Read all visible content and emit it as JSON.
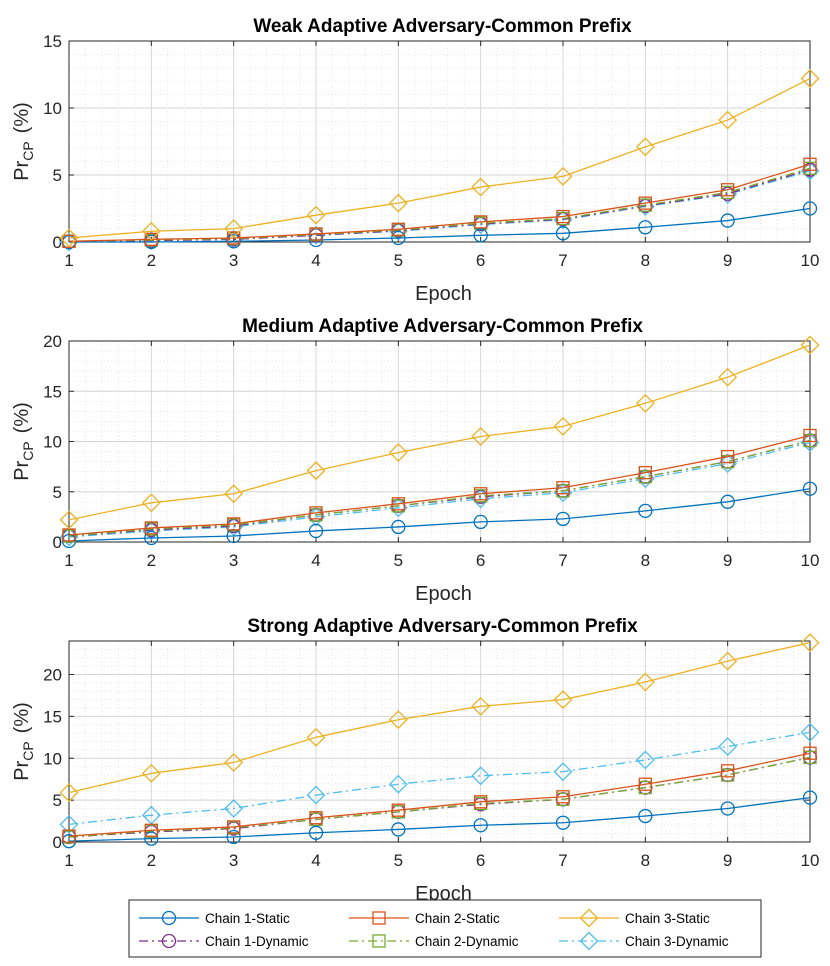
{
  "chart_data": [
    {
      "type": "line",
      "title": "Weak Adaptive Adversary-Common Prefix",
      "xlabel": "Epoch",
      "ylabel_main": "Pr",
      "ylabel_sub": "CP",
      "ylabel_unit": "(%)",
      "x": [
        1,
        2,
        3,
        4,
        5,
        6,
        7,
        8,
        9,
        10
      ],
      "xlim": [
        1,
        10
      ],
      "ylim": [
        0,
        15
      ],
      "yticks": [
        0,
        5,
        10,
        15
      ],
      "grid": true,
      "series": [
        {
          "name": "Chain 1-Static",
          "values": [
            0.0,
            0.0,
            0.05,
            0.15,
            0.3,
            0.5,
            0.65,
            1.1,
            1.6,
            2.5
          ]
        },
        {
          "name": "Chain 2-Static",
          "values": [
            0.05,
            0.2,
            0.3,
            0.6,
            0.95,
            1.5,
            1.9,
            2.9,
            3.9,
            5.8
          ]
        },
        {
          "name": "Chain 3-Static",
          "values": [
            0.3,
            0.8,
            1.0,
            2.0,
            2.9,
            4.1,
            4.9,
            7.1,
            9.1,
            12.2
          ]
        },
        {
          "name": "Chain 1-Dynamic",
          "values": [
            0.0,
            0.1,
            0.2,
            0.5,
            0.85,
            1.35,
            1.7,
            2.7,
            3.6,
            5.4
          ]
        },
        {
          "name": "Chain 2-Dynamic",
          "values": [
            0.05,
            0.15,
            0.25,
            0.55,
            0.9,
            1.4,
            1.75,
            2.75,
            3.7,
            5.5
          ]
        },
        {
          "name": "Chain 3-Dynamic",
          "values": [
            0.0,
            0.1,
            0.2,
            0.5,
            0.8,
            1.3,
            1.65,
            2.65,
            3.55,
            5.3
          ]
        }
      ]
    },
    {
      "type": "line",
      "title": "Medium Adaptive Adversary-Common Prefix",
      "xlabel": "Epoch",
      "ylabel_main": "Pr",
      "ylabel_sub": "CP",
      "ylabel_unit": "(%)",
      "x": [
        1,
        2,
        3,
        4,
        5,
        6,
        7,
        8,
        9,
        10
      ],
      "xlim": [
        1,
        10
      ],
      "ylim": [
        0,
        20
      ],
      "yticks": [
        0,
        5,
        10,
        15,
        20
      ],
      "grid": true,
      "series": [
        {
          "name": "Chain 1-Static",
          "values": [
            0.1,
            0.4,
            0.6,
            1.1,
            1.5,
            2.0,
            2.3,
            3.1,
            4.0,
            5.3
          ]
        },
        {
          "name": "Chain 2-Static",
          "values": [
            0.7,
            1.4,
            1.8,
            2.9,
            3.8,
            4.8,
            5.4,
            6.9,
            8.5,
            10.6
          ]
        },
        {
          "name": "Chain 3-Static",
          "values": [
            2.2,
            3.9,
            4.8,
            7.1,
            8.9,
            10.5,
            11.5,
            13.8,
            16.4,
            19.6
          ]
        },
        {
          "name": "Chain 1-Dynamic",
          "values": [
            0.6,
            1.2,
            1.6,
            2.7,
            3.6,
            4.5,
            5.1,
            6.5,
            8.0,
            10.1
          ]
        },
        {
          "name": "Chain 2-Dynamic",
          "values": [
            0.6,
            1.3,
            1.7,
            2.7,
            3.6,
            4.6,
            5.1,
            6.5,
            8.0,
            10.1
          ]
        },
        {
          "name": "Chain 3-Dynamic",
          "values": [
            0.5,
            1.1,
            1.5,
            2.5,
            3.4,
            4.3,
            4.9,
            6.3,
            7.8,
            9.9
          ]
        }
      ]
    },
    {
      "type": "line",
      "title": "Strong Adaptive Adversary-Common Prefix",
      "xlabel": "Epoch",
      "ylabel_main": "Pr",
      "ylabel_sub": "CP",
      "ylabel_unit": "(%)",
      "x": [
        1,
        2,
        3,
        4,
        5,
        6,
        7,
        8,
        9,
        10
      ],
      "xlim": [
        1,
        10
      ],
      "ylim": [
        0,
        24
      ],
      "yticks": [
        0,
        5,
        10,
        15,
        20
      ],
      "grid": true,
      "series": [
        {
          "name": "Chain 1-Static",
          "values": [
            0.1,
            0.4,
            0.6,
            1.1,
            1.5,
            2.0,
            2.3,
            3.1,
            4.0,
            5.3
          ]
        },
        {
          "name": "Chain 2-Static",
          "values": [
            0.7,
            1.4,
            1.8,
            2.9,
            3.8,
            4.8,
            5.4,
            6.9,
            8.5,
            10.6
          ]
        },
        {
          "name": "Chain 3-Static",
          "values": [
            5.9,
            8.2,
            9.5,
            12.5,
            14.6,
            16.2,
            17.0,
            19.1,
            21.6,
            23.8
          ]
        },
        {
          "name": "Chain 1-Dynamic",
          "values": [
            0.6,
            1.2,
            1.6,
            2.7,
            3.6,
            4.5,
            5.1,
            6.5,
            8.0,
            10.1
          ]
        },
        {
          "name": "Chain 2-Dynamic",
          "values": [
            0.6,
            1.3,
            1.7,
            2.7,
            3.6,
            4.6,
            5.1,
            6.5,
            8.0,
            10.1
          ]
        },
        {
          "name": "Chain 3-Dynamic",
          "values": [
            2.1,
            3.2,
            4.0,
            5.6,
            6.9,
            7.9,
            8.4,
            9.8,
            11.4,
            13.1
          ]
        }
      ]
    }
  ],
  "series_style": [
    {
      "name": "Chain 1-Static",
      "color": "#0072BD",
      "marker": "circle",
      "dash": "solid"
    },
    {
      "name": "Chain 2-Static",
      "color": "#D95319",
      "marker": "square",
      "dash": "solid"
    },
    {
      "name": "Chain 3-Static",
      "color": "#EDB120",
      "marker": "diamond",
      "dash": "solid"
    },
    {
      "name": "Chain 1-Dynamic",
      "color": "#7E2F8E",
      "marker": "circle",
      "dash": "dashdot"
    },
    {
      "name": "Chain 2-Dynamic",
      "color": "#77AC30",
      "marker": "square",
      "dash": "dashdot"
    },
    {
      "name": "Chain 3-Dynamic",
      "color": "#4DBEEE",
      "marker": "diamond",
      "dash": "dashdot"
    }
  ],
  "legend": {
    "placement": "bottom",
    "entries": [
      "Chain 1-Static",
      "Chain 2-Static",
      "Chain 3-Static",
      "Chain 1-Dynamic",
      "Chain 2-Dynamic",
      "Chain 3-Dynamic"
    ]
  },
  "grid_color": "#dcdcdc",
  "axis_color": "#262626"
}
